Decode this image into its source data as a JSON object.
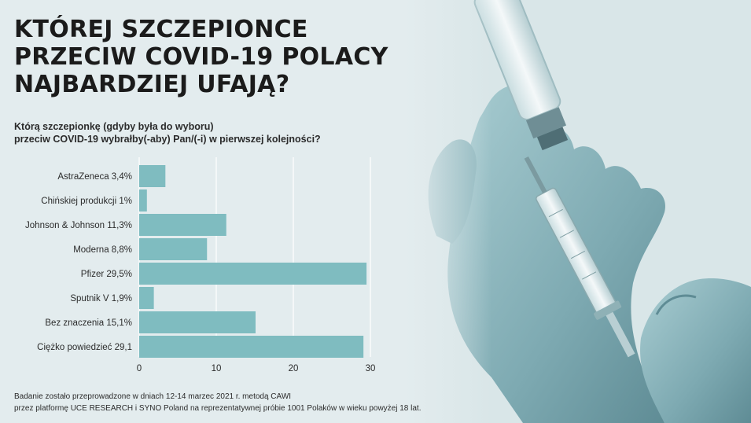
{
  "title_lines": [
    "KTÓREJ SZCZEPIONCE",
    "PRZECIW COVID-19 POLACY",
    "NAJBARDZIEJ UFAJĄ?"
  ],
  "subtitle_lines": [
    "Którą szczepionkę (gdyby była do wyboru)",
    "przeciw COVID-19 wybrałby(-aby) Pan/(-i) w pierwszej kolejności?"
  ],
  "footnote_lines": [
    "Badanie zostało przeprowadzone w dniach 12-14 marzec 2021 r. metodą CAWI",
    "przez platformę UCE RESEARCH i SYNO Poland na reprezentatywnej próbie 1001 Polaków w wieku powyżej 18 lat."
  ],
  "colors": {
    "bar": "#7fbcc0",
    "grid": "#ffffff",
    "text": "#2b2b2b",
    "background": "#e3ecee"
  },
  "chart_data": {
    "type": "bar",
    "orientation": "horizontal",
    "title": "Którą szczepionkę (gdyby była do wyboru) przeciw COVID-19 wybrałby(-aby) Pan/(-i) w pierwszej kolejności?",
    "categories": [
      "AstraZeneca 3,4%",
      "Chińskiej produkcji 1%",
      "Johnson & Johnson 11,3%",
      "Moderna 8,8%",
      "Pfizer 29,5%",
      "Sputnik V 1,9%",
      "Bez znaczenia 15,1%",
      "Ciężko powiedzieć 29,1"
    ],
    "values": [
      3.4,
      1,
      11.3,
      8.8,
      29.5,
      1.9,
      15.1,
      29.1
    ],
    "xlim": [
      0,
      30
    ],
    "xticks": [
      "0",
      "10",
      "20",
      "30"
    ],
    "grid": true,
    "legend": "none"
  }
}
